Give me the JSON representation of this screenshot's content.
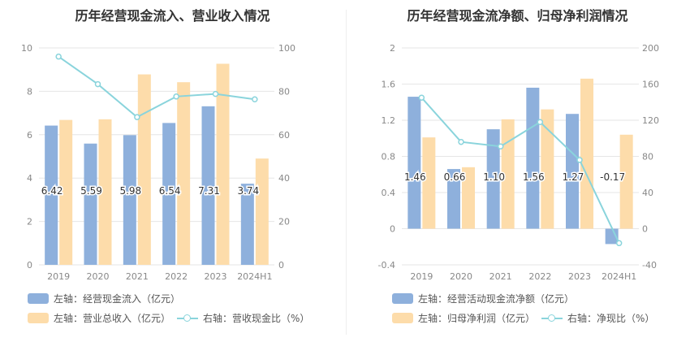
{
  "colors": {
    "bar1": "#8eb0dc",
    "bar2": "#fddcaa",
    "line": "#8ad4dc",
    "grid": "#e6e6e6",
    "axis_text": "#888888"
  },
  "left": {
    "title": "历年经营现金流入、营业收入情况",
    "legend": {
      "bar1": "左轴：经营现金流入（亿元）",
      "bar2": "左轴：营业总收入（亿元）",
      "line": "右轴：营收现金比（%）"
    }
  },
  "right": {
    "title": "历年经营现金流净额、归母净利润情况",
    "legend": {
      "bar1": "左轴：经营活动现金流净额（亿元）",
      "bar2": "左轴：归母净利润（亿元）",
      "line": "右轴：净现比（%）"
    }
  },
  "chart_data": [
    {
      "type": "bar",
      "title": "历年经营现金流入、营业收入情况",
      "categories": [
        "2019",
        "2020",
        "2021",
        "2022",
        "2023",
        "2024H1"
      ],
      "series": [
        {
          "name": "左轴：经营现金流入（亿元）",
          "axis": "left",
          "type": "bar",
          "values": [
            6.42,
            5.59,
            5.98,
            6.54,
            7.31,
            3.74
          ],
          "labels": [
            "6.42",
            "5.59",
            "5.98",
            "6.54",
            "7.31",
            "3.74"
          ]
        },
        {
          "name": "左轴：营业总收入（亿元）",
          "axis": "left",
          "type": "bar",
          "values": [
            6.68,
            6.71,
            8.78,
            8.42,
            9.27,
            4.9
          ]
        },
        {
          "name": "右轴：营收现金比（%）",
          "axis": "right",
          "type": "line",
          "values": [
            96,
            83.3,
            68.1,
            77.6,
            78.8,
            76.3
          ]
        }
      ],
      "y_left": {
        "min": 0,
        "max": 10,
        "ticks": [
          "0",
          "2",
          "4",
          "6",
          "8",
          "10"
        ]
      },
      "y_right": {
        "min": 0,
        "max": 100,
        "ticks": [
          "0",
          "20",
          "40",
          "60",
          "80",
          "100"
        ]
      },
      "grid": true,
      "legend_position": "bottom-left"
    },
    {
      "type": "bar",
      "title": "历年经营现金流净额、归母净利润情况",
      "categories": [
        "2019",
        "2020",
        "2021",
        "2022",
        "2023",
        "2024H1"
      ],
      "series": [
        {
          "name": "左轴：经营活动现金流净额（亿元）",
          "axis": "left",
          "type": "bar",
          "values": [
            1.46,
            0.66,
            1.1,
            1.56,
            1.27,
            -0.17
          ],
          "labels": [
            "1.46",
            "0.66",
            "1.10",
            "1.56",
            "1.27",
            "-0.17"
          ]
        },
        {
          "name": "左轴：归母净利润（亿元）",
          "axis": "left",
          "type": "bar",
          "values": [
            1.01,
            0.68,
            1.21,
            1.32,
            1.66,
            1.04
          ]
        },
        {
          "name": "右轴：净现比（%）",
          "axis": "right",
          "type": "line",
          "values": [
            145,
            96,
            91,
            118,
            76,
            -16
          ]
        }
      ],
      "y_left": {
        "min": -0.4,
        "max": 2,
        "ticks": [
          "-0.4",
          "0",
          "0.4",
          "0.8",
          "1.2",
          "1.6",
          "2"
        ]
      },
      "y_right": {
        "min": -40,
        "max": 200,
        "ticks": [
          "-40",
          "0",
          "40",
          "80",
          "120",
          "160",
          "200"
        ]
      },
      "grid": true,
      "legend_position": "bottom-left"
    }
  ]
}
